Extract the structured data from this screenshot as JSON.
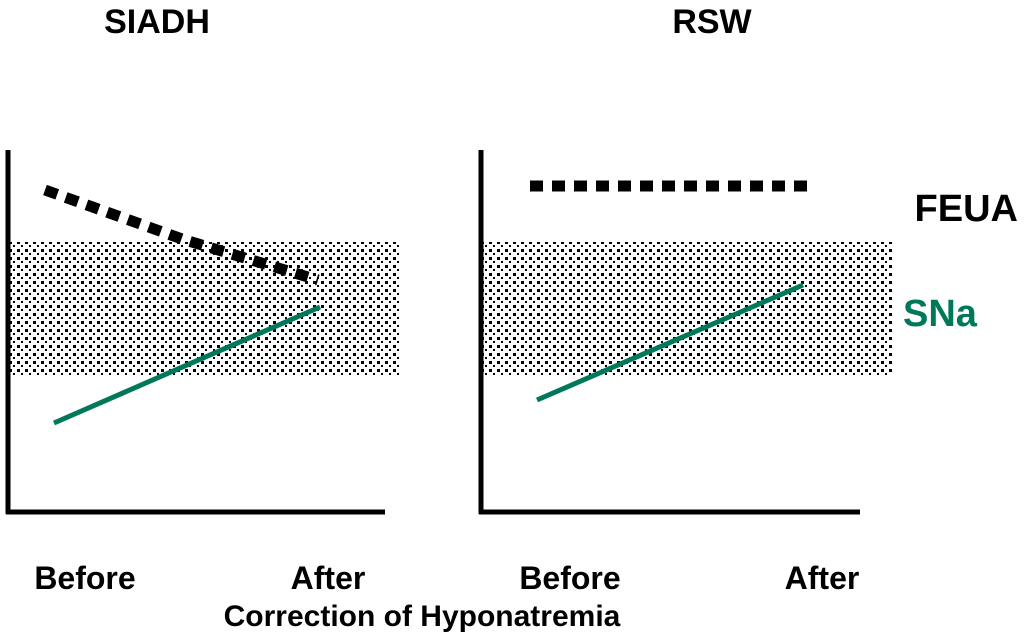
{
  "colors": {
    "feua": "#000000",
    "sna": "#00785a",
    "band_dots": "#000000",
    "axes": "#000000"
  },
  "legend": {
    "feua_label": "FEUA",
    "sna_label": "SNa"
  },
  "caption": "Correction of Hyponatremia",
  "panels": [
    {
      "title": "SIADH",
      "x_ticks": [
        "Before",
        "After"
      ],
      "feua_trend": "decreasing",
      "sna_trend": "increasing"
    },
    {
      "title": "RSW",
      "x_ticks": [
        "Before",
        "After"
      ],
      "feua_trend": "flat",
      "sna_trend": "increasing"
    }
  ]
}
